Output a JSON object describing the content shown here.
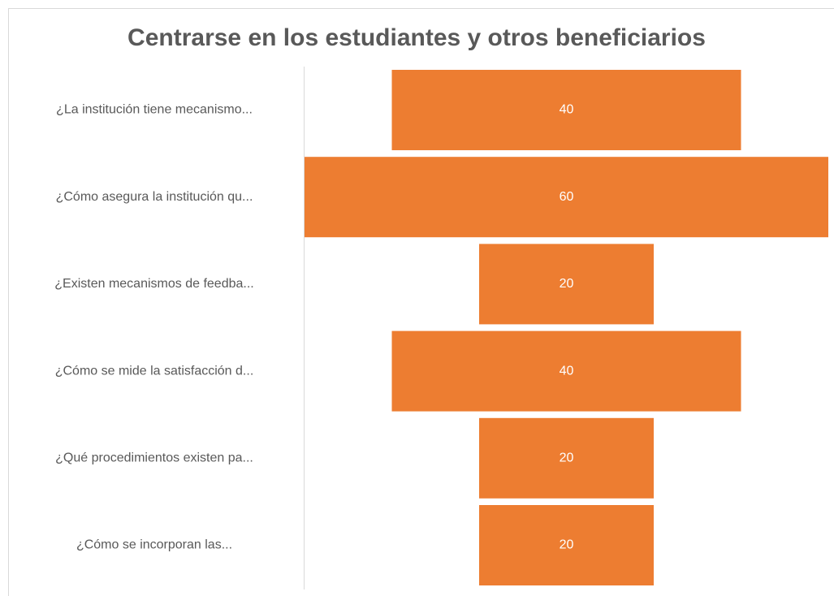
{
  "chart_data": {
    "type": "funnel",
    "title": "Centrarse en los estudiantes y otros beneficiarios",
    "categories": [
      "¿La institución tiene mecanismo...",
      "¿Cómo asegura la institución qu...",
      "¿Existen mecanismos de feedba...",
      "¿Cómo se mide la satisfacción d...",
      "¿Qué procedimientos existen pa...",
      "¿Cómo se incorporan las..."
    ],
    "values": [
      40,
      60,
      20,
      40,
      20,
      20
    ],
    "color": "#ed7d31"
  }
}
